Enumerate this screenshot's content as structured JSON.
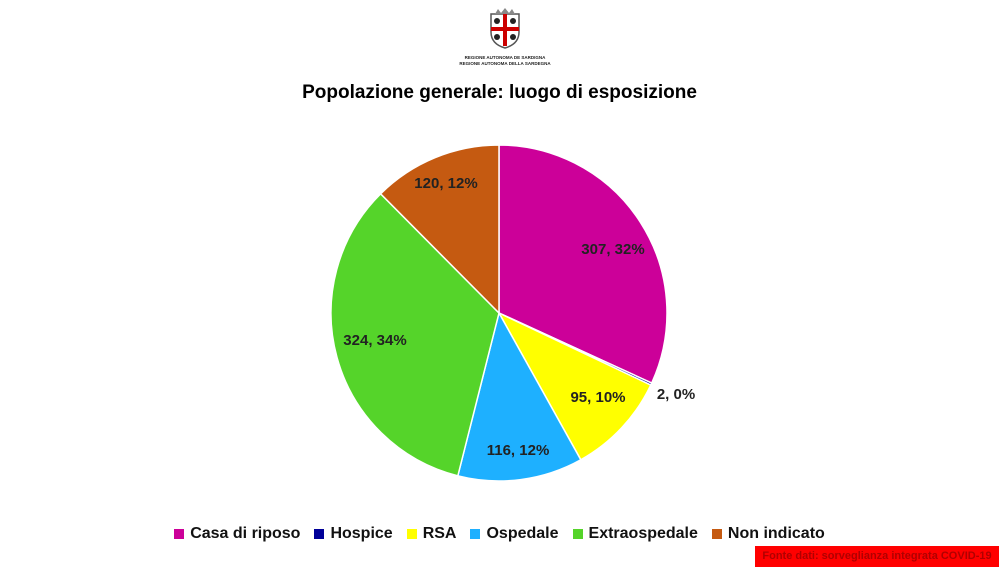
{
  "logo": {
    "line1": "REGIONE AUTONOMA DE SARDIGNA",
    "line2": "REGIONE AUTONOMA DELLA SARDEGNA"
  },
  "source": "Fonte dati: sorveglianza integrata COVID-19",
  "chart_data": {
    "type": "pie",
    "title": "Popolazione generale: luogo di esposizione",
    "categories": [
      "Casa di riposo",
      "Hospice",
      "RSA",
      "Ospedale",
      "Extraospedale",
      "Non indicato"
    ],
    "values": [
      307,
      2,
      95,
      116,
      324,
      120
    ],
    "data_labels": [
      "307, 32%",
      "2, 0%",
      "95, 10%",
      "116, 12%",
      "324, 34%",
      "120, 12%"
    ],
    "colors": [
      "#cc0099",
      "#000099",
      "#ffff00",
      "#1eb0ff",
      "#55d42a",
      "#c55a11"
    ],
    "legend": "bottom",
    "start": "top, clockwise"
  }
}
